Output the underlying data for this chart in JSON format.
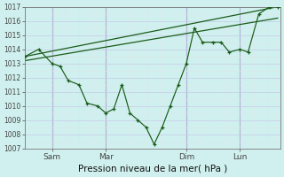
{
  "xlabel": "Pression niveau de la mer( hPa )",
  "ylim": [
    1007,
    1017
  ],
  "xlim": [
    0,
    9.5
  ],
  "yticks": [
    1007,
    1008,
    1009,
    1010,
    1011,
    1012,
    1013,
    1014,
    1015,
    1016,
    1017
  ],
  "xtick_labels": [
    "Sam",
    "Mar",
    "Dim",
    "Lun"
  ],
  "xtick_positions": [
    1.0,
    3.0,
    6.0,
    8.0
  ],
  "vline_positions": [
    1.0,
    3.0,
    6.0,
    8.0
  ],
  "bg_color": "#cff0ee",
  "grid_major_color": "#c8c8e8",
  "grid_minor_color": "#dde8e8",
  "line_color": "#1a5c1a",
  "trend1_x": [
    0.0,
    9.4
  ],
  "trend1_y": [
    1013.5,
    1017.0
  ],
  "trend2_x": [
    0.0,
    9.4
  ],
  "trend2_y": [
    1013.2,
    1016.2
  ],
  "jagged_x": [
    0.0,
    0.5,
    1.0,
    1.3,
    1.6,
    2.0,
    2.3,
    2.7,
    3.0,
    3.3,
    3.6,
    3.9,
    4.2,
    4.5,
    4.8,
    5.1,
    5.4,
    5.7,
    6.0,
    6.3,
    6.6,
    7.0,
    7.3,
    7.6,
    8.0,
    8.3,
    8.7,
    9.1,
    9.4
  ],
  "jagged_y": [
    1013.5,
    1014.0,
    1013.0,
    1012.8,
    1011.8,
    1011.5,
    1010.2,
    1010.0,
    1009.5,
    1009.8,
    1011.5,
    1009.5,
    1009.0,
    1008.5,
    1007.3,
    1008.5,
    1010.0,
    1011.5,
    1013.0,
    1015.5,
    1014.5,
    1014.5,
    1014.5,
    1013.8,
    1014.0,
    1013.8,
    1016.5,
    1017.0,
    1017.0
  ]
}
